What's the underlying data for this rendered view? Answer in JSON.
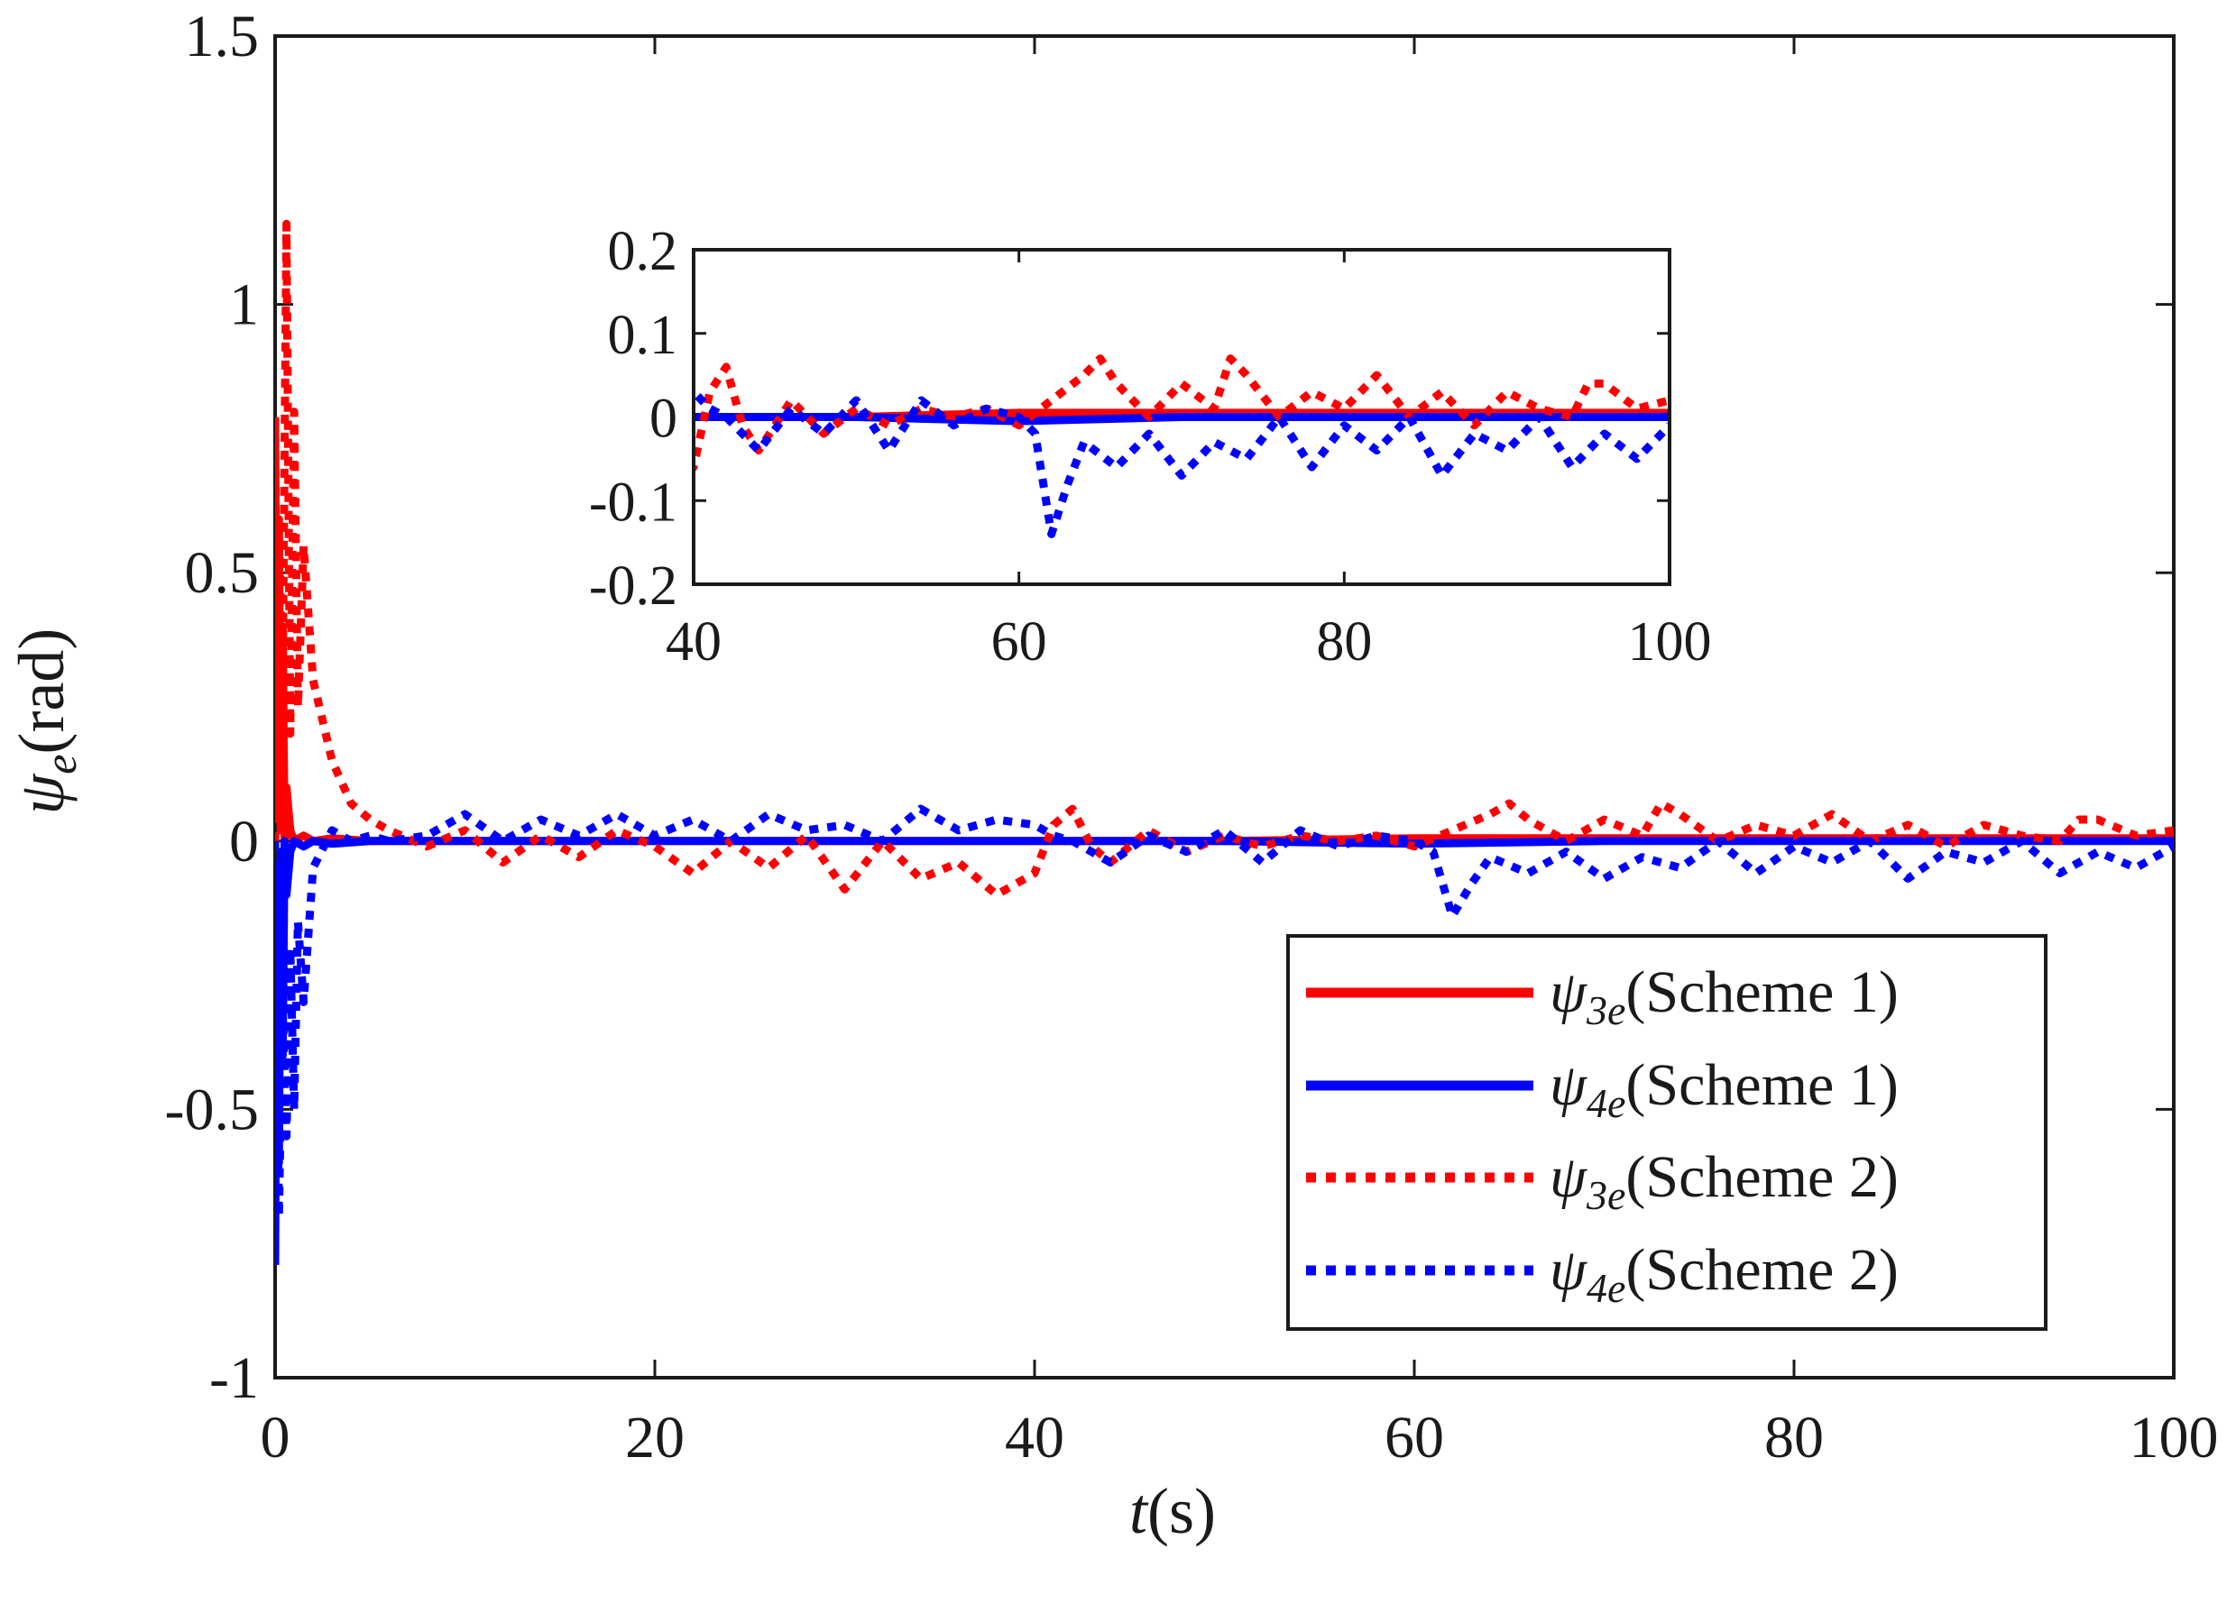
{
  "chart_data": {
    "type": "line",
    "xlabel": "t(s)",
    "ylabel": "ψe(rad)",
    "xlim": [
      0,
      100
    ],
    "ylim": [
      -1,
      1.5
    ],
    "xticks": [
      0,
      20,
      40,
      60,
      80,
      100
    ],
    "yticks": [
      -1,
      -0.5,
      0,
      0.5,
      1,
      1.5
    ],
    "legend_location": "lower-right",
    "colors": {
      "red": "#ff0000",
      "blue": "#0000ff"
    },
    "series": [
      {
        "name": "ψ3e(Scheme 1)",
        "label_main": "ψ",
        "label_sub": "3e",
        "label_rest": "(Scheme 1)",
        "color": "#ff0000",
        "style": "solid",
        "x": [
          0,
          0.1,
          0.2,
          0.3,
          0.4,
          0.5,
          0.6,
          0.8,
          1,
          1.5,
          2,
          3,
          5,
          10,
          20,
          30,
          40,
          50,
          60,
          70,
          80,
          90,
          100
        ],
        "values": [
          0.79,
          0.05,
          0.6,
          0.02,
          0.4,
          0.0,
          0.1,
          0.02,
          0.0,
          0.01,
          0.0,
          0.005,
          0.0,
          0.0,
          0.0,
          0.0,
          0.0,
          0.0,
          0.005,
          0.005,
          0.005,
          0.005,
          0.005
        ]
      },
      {
        "name": "ψ4e(Scheme 1)",
        "label_main": "ψ",
        "label_sub": "4e",
        "label_rest": "(Scheme 1)",
        "color": "#0000ff",
        "style": "solid",
        "x": [
          0,
          0.1,
          0.2,
          0.3,
          0.4,
          0.5,
          0.6,
          0.8,
          1,
          1.5,
          2,
          3,
          5,
          10,
          20,
          30,
          40,
          50,
          60,
          70,
          80,
          90,
          100
        ],
        "values": [
          -0.79,
          -0.05,
          -0.6,
          -0.02,
          -0.4,
          0.0,
          -0.1,
          -0.02,
          0.0,
          -0.01,
          0.0,
          -0.005,
          0.0,
          0.0,
          0.0,
          0.0,
          0.0,
          0.0,
          -0.005,
          0.0,
          0.0,
          0.0,
          0.0
        ]
      },
      {
        "name": "ψ3e(Scheme 2)",
        "label_main": "ψ",
        "label_sub": "3e",
        "label_rest": "(Scheme 2)",
        "color": "#ff0000",
        "style": "dotted",
        "x": [
          0,
          0.2,
          0.4,
          0.6,
          0.8,
          1.0,
          1.2,
          1.5,
          2,
          3,
          4,
          5,
          6,
          8,
          10,
          12,
          14,
          16,
          18,
          20,
          22,
          24,
          26,
          28,
          30,
          32,
          34,
          36,
          38,
          40,
          41,
          42,
          43,
          44,
          46,
          48,
          50,
          52,
          54,
          56,
          58,
          60,
          62,
          64,
          65,
          66,
          68,
          70,
          72,
          73,
          74,
          76,
          78,
          80,
          82,
          84,
          86,
          88,
          90,
          92,
          94,
          95,
          96,
          98,
          100
        ],
        "values": [
          0.0,
          0.6,
          0.3,
          1.15,
          0.2,
          0.8,
          0.25,
          0.55,
          0.3,
          0.15,
          0.07,
          0.04,
          0.02,
          -0.01,
          0.02,
          -0.04,
          0.01,
          -0.03,
          0.02,
          -0.01,
          -0.06,
          0.0,
          -0.05,
          0.01,
          -0.09,
          0.0,
          -0.07,
          -0.04,
          -0.1,
          -0.06,
          0.03,
          0.06,
          -0.01,
          -0.04,
          0.02,
          -0.02,
          0.01,
          -0.01,
          0.01,
          0.0,
          0.01,
          -0.01,
          0.02,
          0.05,
          0.07,
          0.04,
          0.0,
          0.04,
          0.01,
          0.07,
          0.05,
          0.0,
          0.03,
          0.01,
          0.05,
          0.0,
          0.03,
          -0.01,
          0.03,
          0.01,
          0.0,
          0.04,
          0.04,
          0.01,
          0.02
        ]
      },
      {
        "name": "ψ4e(Scheme 2)",
        "label_main": "ψ",
        "label_sub": "4e",
        "label_rest": "(Scheme 2)",
        "color": "#0000ff",
        "style": "dotted",
        "x": [
          0,
          0.2,
          0.4,
          0.6,
          0.8,
          1.0,
          1.2,
          1.5,
          2,
          3,
          4,
          5,
          6,
          8,
          10,
          12,
          14,
          16,
          18,
          20,
          22,
          24,
          26,
          28,
          30,
          32,
          34,
          36,
          38,
          40,
          41,
          42,
          43,
          44,
          46,
          48,
          50,
          52,
          54,
          56,
          58,
          60,
          61,
          62,
          63,
          64,
          66,
          68,
          70,
          72,
          74,
          76,
          78,
          80,
          82,
          84,
          86,
          88,
          90,
          92,
          94,
          96,
          98,
          100
        ],
        "values": [
          0.0,
          -0.7,
          -0.3,
          -0.55,
          -0.2,
          -0.5,
          -0.15,
          -0.3,
          -0.05,
          0.02,
          0.0,
          0.01,
          0.0,
          0.01,
          0.05,
          0.0,
          0.04,
          0.01,
          0.05,
          0.01,
          0.04,
          0.0,
          0.05,
          0.02,
          0.03,
          0.0,
          0.06,
          0.02,
          0.04,
          0.03,
          0.01,
          0.0,
          -0.02,
          -0.04,
          0.01,
          -0.02,
          0.02,
          -0.04,
          0.02,
          -0.01,
          0.01,
          0.0,
          -0.02,
          -0.14,
          -0.08,
          -0.03,
          -0.06,
          -0.02,
          -0.07,
          -0.03,
          -0.05,
          0.0,
          -0.06,
          -0.01,
          -0.04,
          0.0,
          -0.07,
          -0.02,
          -0.04,
          0.0,
          -0.06,
          -0.02,
          -0.05,
          -0.01
        ]
      }
    ],
    "inset": {
      "xlim": [
        40,
        100
      ],
      "ylim": [
        -0.2,
        0.2
      ],
      "xticks": [
        40,
        60,
        80,
        100
      ],
      "yticks": [
        -0.2,
        -0.1,
        0,
        0.1,
        0.2
      ],
      "x_tick_labels": [
        "40",
        "60",
        "80",
        "100"
      ],
      "y_tick_labels": [
        "-0.2",
        "-0.1",
        "0",
        "0.1",
        "0.2"
      ]
    },
    "x_tick_labels": [
      "0",
      "20",
      "40",
      "60",
      "80",
      "100"
    ],
    "y_tick_labels": [
      "-1",
      "-0.5",
      "0",
      "0.5",
      "1",
      "1.5"
    ],
    "xlabel_main": "t",
    "xlabel_rest": "(s)",
    "ylabel_main": "ψ",
    "ylabel_sub": "e",
    "ylabel_rest": "(rad)"
  }
}
